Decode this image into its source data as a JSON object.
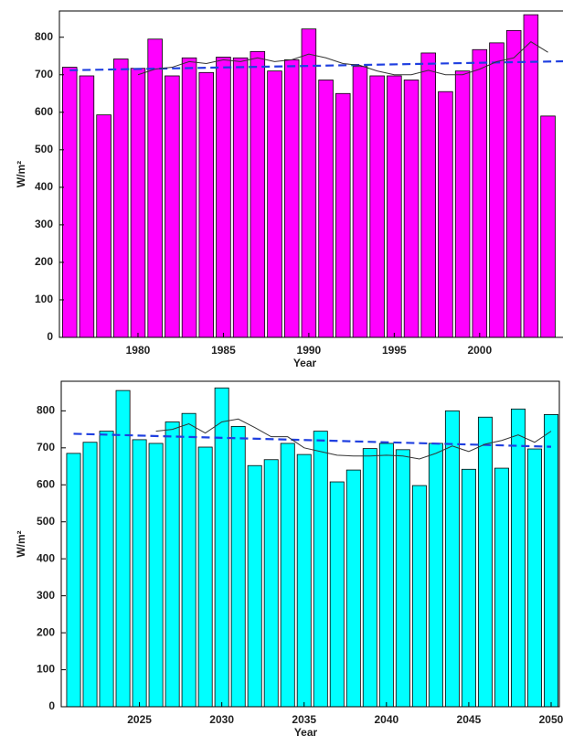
{
  "chart_data": [
    {
      "type": "bar",
      "x_label": "Year",
      "y_label": "W/m²",
      "color": "#ff00ff",
      "x": [
        1976,
        1977,
        1978,
        1979,
        1980,
        1981,
        1982,
        1983,
        1984,
        1985,
        1986,
        1987,
        1988,
        1989,
        1990,
        1991,
        1992,
        1993,
        1994,
        1995,
        1996,
        1997,
        1998,
        1999,
        2000,
        2001,
        2002,
        2003,
        2004
      ],
      "values": [
        720,
        697,
        593,
        742,
        717,
        795,
        697,
        745,
        706,
        747,
        745,
        762,
        710,
        740,
        822,
        686,
        650,
        722,
        697,
        697,
        686,
        758,
        655,
        710,
        767,
        785,
        818,
        860,
        590
      ],
      "xlim": [
        1975.4,
        2005.2
      ],
      "xticks": [
        1980,
        1985,
        1990,
        1995,
        2000
      ],
      "ylim": [
        0,
        870
      ],
      "yticks": [
        0,
        100,
        200,
        300,
        400,
        500,
        600,
        700,
        800
      ],
      "lines": [
        {
          "style": "dashed",
          "color": "#1f3fe0",
          "x": [
            1976,
            2005
          ],
          "values": [
            712,
            736
          ]
        },
        {
          "style": "solid",
          "color": "#333333",
          "x": [
            1980,
            1981,
            1982,
            1983,
            1984,
            1985,
            1986,
            1987,
            1988,
            1989,
            1990,
            1991,
            1992,
            1993,
            1994,
            1995,
            1996,
            1997,
            1998,
            1999,
            2000,
            2001,
            2002,
            2003,
            2004
          ],
          "values": [
            700,
            715,
            720,
            735,
            730,
            740,
            735,
            745,
            735,
            740,
            755,
            745,
            730,
            725,
            710,
            700,
            700,
            712,
            700,
            700,
            715,
            735,
            745,
            788,
            760
          ]
        }
      ]
    },
    {
      "type": "bar",
      "x_label": "Year",
      "y_label": "W/m²",
      "color": "#00ffff",
      "x": [
        2021,
        2022,
        2023,
        2024,
        2025,
        2026,
        2027,
        2028,
        2029,
        2030,
        2031,
        2032,
        2033,
        2034,
        2035,
        2036,
        2037,
        2038,
        2039,
        2040,
        2041,
        2042,
        2043,
        2044,
        2045,
        2046,
        2047,
        2048,
        2049,
        2050
      ],
      "values": [
        685,
        715,
        745,
        855,
        722,
        712,
        770,
        793,
        702,
        862,
        758,
        652,
        668,
        712,
        682,
        745,
        608,
        640,
        698,
        712,
        695,
        598,
        712,
        800,
        642,
        783,
        645,
        805,
        697,
        790
      ],
      "xlim": [
        2020.25,
        2050.5
      ],
      "xticks": [
        2025,
        2030,
        2035,
        2040,
        2045,
        2050
      ],
      "ylim": [
        0,
        880
      ],
      "yticks": [
        0,
        100,
        200,
        300,
        400,
        500,
        600,
        700,
        800
      ],
      "lines": [
        {
          "style": "dashed",
          "color": "#1f3fe0",
          "x": [
            2021,
            2050
          ],
          "values": [
            738,
            703
          ]
        },
        {
          "style": "solid",
          "color": "#333333",
          "x": [
            2026,
            2027,
            2028,
            2029,
            2030,
            2031,
            2032,
            2033,
            2034,
            2035,
            2036,
            2037,
            2038,
            2039,
            2040,
            2041,
            2042,
            2043,
            2044,
            2045,
            2046,
            2047,
            2048,
            2049,
            2050
          ],
          "values": [
            745,
            750,
            765,
            740,
            770,
            778,
            755,
            730,
            730,
            700,
            690,
            680,
            678,
            678,
            680,
            678,
            670,
            685,
            705,
            690,
            710,
            720,
            735,
            715,
            745
          ]
        }
      ]
    }
  ]
}
